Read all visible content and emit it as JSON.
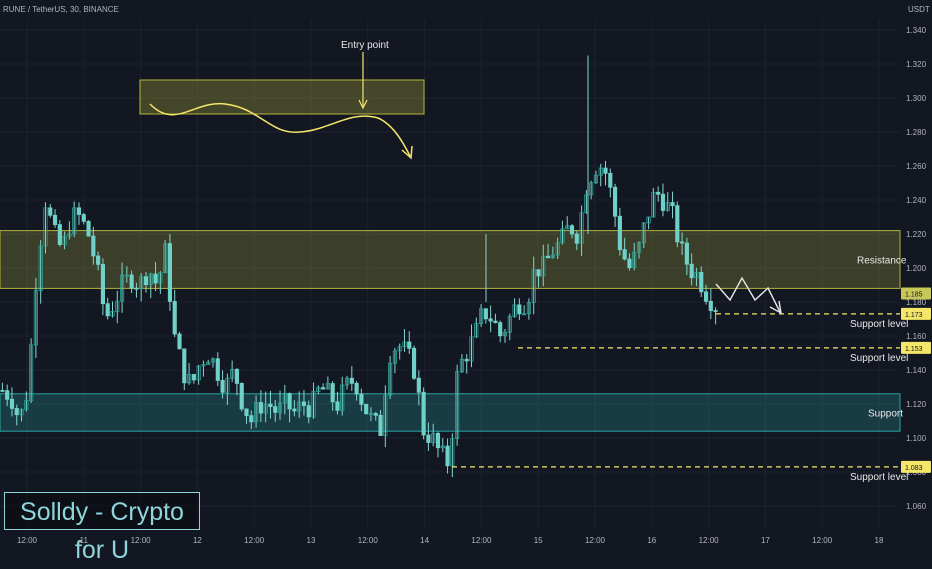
{
  "header": {
    "symbol_line": "RUNE / TetherUS, 30, BINANCE",
    "currency": "USDT"
  },
  "brand": {
    "text": "Solldy - Crypto for U"
  },
  "colors": {
    "up": "#26a69a",
    "down": "#6fd1c8",
    "wick": "#7fd8cf",
    "resistance_zone": "#b5b33c",
    "support_zone": "#2aa6a6",
    "annotation": "#f5e66a"
  },
  "chart_data": {
    "type": "candlestick",
    "y_axis": {
      "min": 1.06,
      "max": 1.34,
      "ticks": [
        "1.340",
        "1.320",
        "1.300",
        "1.280",
        "1.260",
        "1.240",
        "1.220",
        "1.200",
        "1.180",
        "1.160",
        "1.140",
        "1.120",
        "1.100",
        "1.080",
        "1.060"
      ]
    },
    "x_axis": {
      "ticks": [
        "12:00",
        "11",
        "12:00",
        "12",
        "12:00",
        "13",
        "12:00",
        "14",
        "12:00",
        "15",
        "12:00",
        "16",
        "12:00",
        "17",
        "12:00",
        "18"
      ]
    },
    "price_tags": [
      "1.185",
      "1.173",
      "1.153",
      "1.083"
    ],
    "zones": [
      {
        "label": "Resistance",
        "low": 1.188,
        "high": 1.222
      },
      {
        "label": "Support",
        "low": 1.104,
        "high": 1.126
      }
    ],
    "levels": [
      {
        "label": "Support level",
        "price": 1.173
      },
      {
        "label": "Support level",
        "price": 1.153
      },
      {
        "label": "Support level",
        "price": 1.083
      }
    ],
    "entry_annotation": {
      "label": "Entry point"
    },
    "close_series": [
      1.128,
      1.125,
      1.11,
      1.13,
      1.2,
      1.24,
      1.22,
      1.21,
      1.23,
      1.23,
      1.22,
      1.2,
      1.17,
      1.18,
      1.19,
      1.195,
      1.19,
      1.2,
      1.19,
      1.21,
      1.16,
      1.14,
      1.13,
      1.145,
      1.15,
      1.14,
      1.13,
      1.14,
      1.12,
      1.11,
      1.12,
      1.12,
      1.115,
      1.12,
      1.115,
      1.12,
      1.118,
      1.13,
      1.125,
      1.12,
      1.13,
      1.135,
      1.12,
      1.11,
      1.105,
      1.15,
      1.155,
      1.15,
      1.14,
      1.105,
      1.1,
      1.09,
      1.085,
      1.14,
      1.15,
      1.16,
      1.175,
      1.17,
      1.16,
      1.17,
      1.18,
      1.18,
      1.2,
      1.2,
      1.21,
      1.215,
      1.225,
      1.22,
      1.25,
      1.26,
      1.26,
      1.24,
      1.21,
      1.2,
      1.21,
      1.23,
      1.245,
      1.24,
      1.23,
      1.21,
      1.2,
      1.195,
      1.185,
      1.178
    ]
  }
}
